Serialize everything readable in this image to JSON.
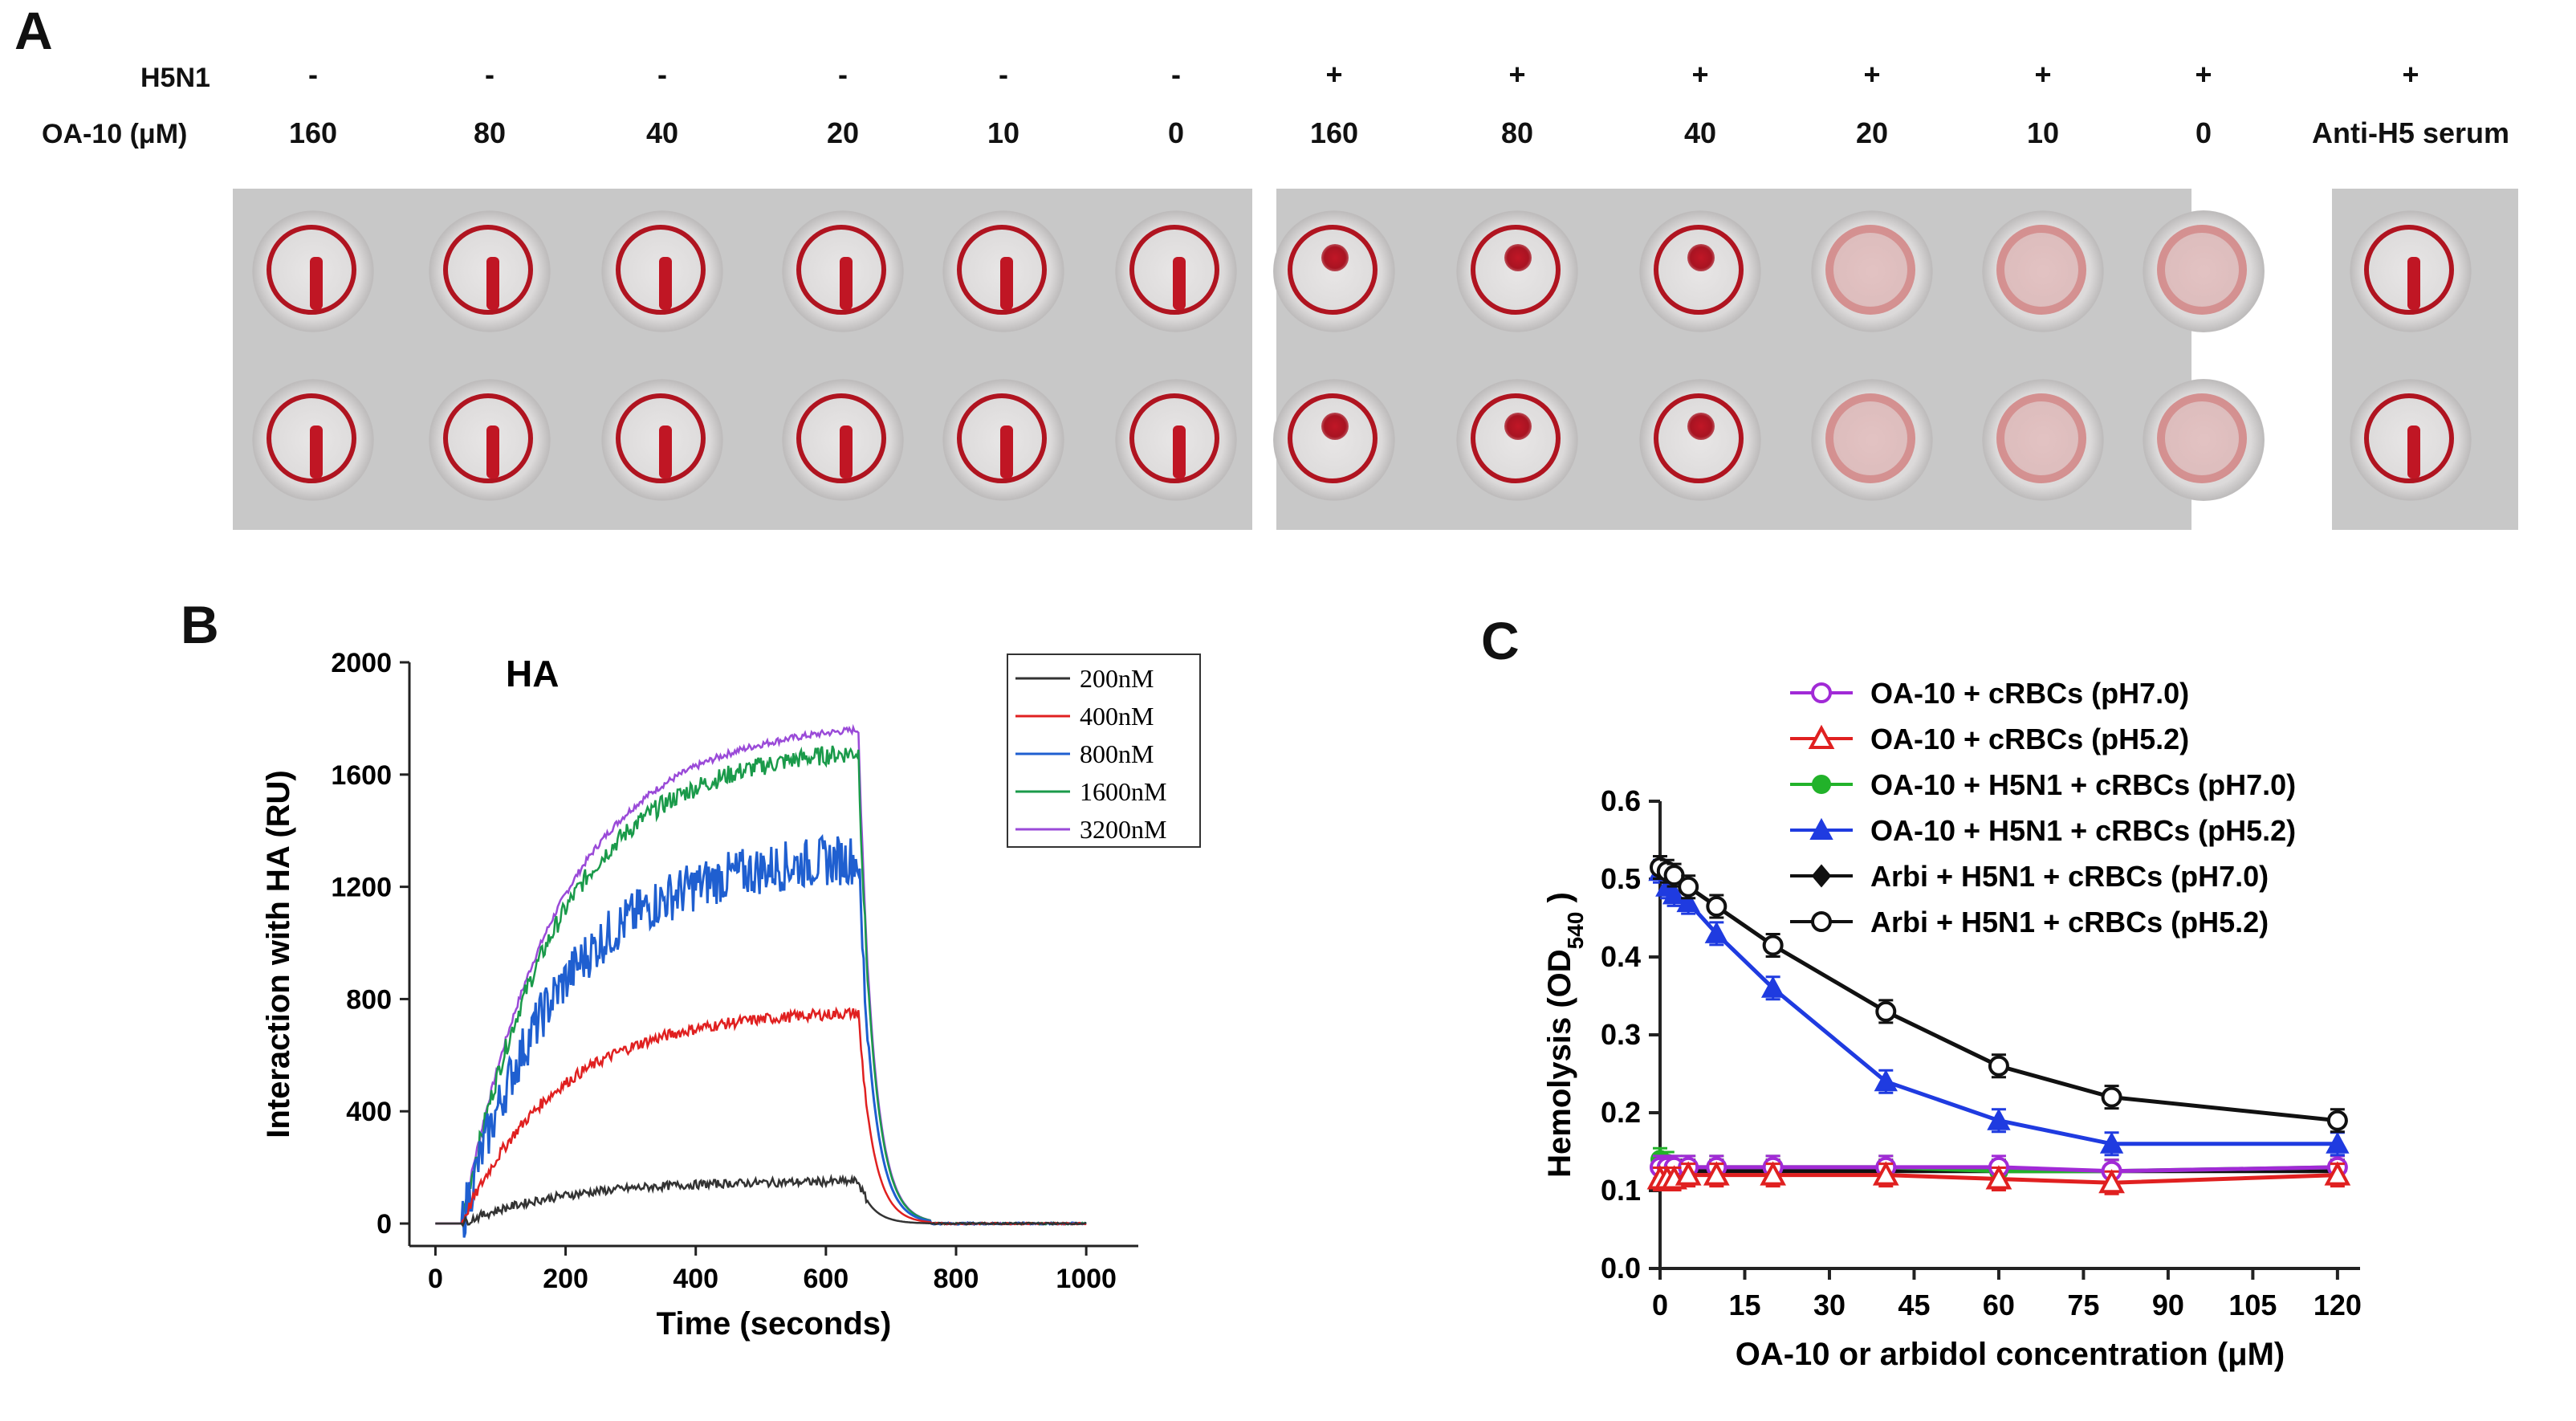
{
  "panel_a": {
    "letter": "A",
    "row_labels": {
      "virus": "H5N1",
      "compound": "OA-10 (μM)"
    },
    "virus_marks": [
      "-",
      "-",
      "-",
      "-",
      "-",
      "-",
      "+",
      "+",
      "+",
      "+",
      "+",
      "+",
      "+"
    ],
    "concentrations": [
      "160",
      "80",
      "40",
      "20",
      "10",
      "0",
      "160",
      "80",
      "40",
      "20",
      "10",
      "0",
      "Anti-H5 serum"
    ],
    "well_patterns": [
      "streak",
      "streak",
      "streak",
      "streak",
      "streak",
      "streak",
      "dot",
      "dot",
      "dot",
      "diffuse",
      "diffuse",
      "diffuse",
      "streak"
    ]
  },
  "chart_data": [
    {
      "panel": "B",
      "type": "line",
      "title": "HA",
      "xlabel": "Time (seconds)",
      "ylabel": "Interaction with HA (RU)",
      "xlim": [
        -40,
        1080
      ],
      "ylim": [
        -80,
        2000
      ],
      "xticks": [
        0,
        200,
        400,
        600,
        800,
        1000
      ],
      "yticks": [
        0,
        400,
        800,
        1200,
        1600,
        2000
      ],
      "legend_position": "top-right",
      "series": [
        {
          "name": "200nM",
          "color": "#333333",
          "plateau": 150,
          "noise": 15
        },
        {
          "name": "400nM",
          "color": "#e02020",
          "plateau": 750,
          "noise": 20
        },
        {
          "name": "800nM",
          "color": "#1f5fd0",
          "plateau": 1300,
          "noise": 90
        },
        {
          "name": "1600nM",
          "color": "#1a9a4a",
          "plateau": 1680,
          "noise": 35
        },
        {
          "name": "3200nM",
          "color": "#9a4ad8",
          "plateau": 1760,
          "noise": 12
        }
      ]
    },
    {
      "panel": "C",
      "type": "line",
      "xlabel": "OA-10 or arbidol concentration (μM)",
      "ylabel_main": "Hemolysis (OD",
      "ylabel_sub": "540",
      "ylabel_close": ")",
      "xlim": [
        0,
        124
      ],
      "ylim": [
        0,
        0.6
      ],
      "xticks": [
        "0",
        "15",
        "30",
        "45",
        "60",
        "75",
        "90",
        "105",
        "120"
      ],
      "yticks": [
        "0.0",
        "0.1",
        "0.2",
        "0.3",
        "0.4",
        "0.5",
        "0.6"
      ],
      "x": [
        0,
        1.25,
        2.5,
        5,
        10,
        20,
        40,
        60,
        80,
        120
      ],
      "legend_position": "top-right",
      "series": [
        {
          "name": "OA-10 + cRBCs (pH7.0)",
          "color": "#a12ad6",
          "marker": "circle-open",
          "values": [
            0.13,
            0.13,
            0.13,
            0.13,
            0.13,
            0.13,
            0.13,
            0.13,
            0.125,
            0.13
          ]
        },
        {
          "name": "OA-10 + cRBCs (pH5.2)",
          "color": "#e02020",
          "marker": "triangle-open",
          "values": [
            0.115,
            0.115,
            0.115,
            0.12,
            0.12,
            0.12,
            0.12,
            0.115,
            0.11,
            0.12
          ]
        },
        {
          "name": "OA-10 + H5N1 + cRBCs (pH7.0)",
          "color": "#22b22a",
          "marker": "circle",
          "values": [
            0.14,
            0.135,
            0.13,
            0.13,
            0.13,
            0.13,
            0.13,
            0.125,
            0.125,
            0.13
          ]
        },
        {
          "name": "OA-10 + H5N1 + cRBCs (pH5.2)",
          "color": "#1f3be0",
          "marker": "triangle",
          "values": [
            0.51,
            0.49,
            0.48,
            0.47,
            0.43,
            0.36,
            0.24,
            0.19,
            0.16,
            0.16
          ]
        },
        {
          "name": "Arbi + H5N1 + cRBCs (pH7.0)",
          "color": "#111111",
          "marker": "diamond",
          "values": [
            0.125,
            0.125,
            0.125,
            0.125,
            0.125,
            0.125,
            0.125,
            0.125,
            0.125,
            0.125
          ]
        },
        {
          "name": "Arbi + H5N1 + cRBCs (pH5.2)",
          "color": "#111111",
          "marker": "circle-open",
          "values": [
            0.515,
            0.51,
            0.505,
            0.49,
            0.465,
            0.415,
            0.33,
            0.26,
            0.22,
            0.19
          ]
        }
      ]
    }
  ]
}
